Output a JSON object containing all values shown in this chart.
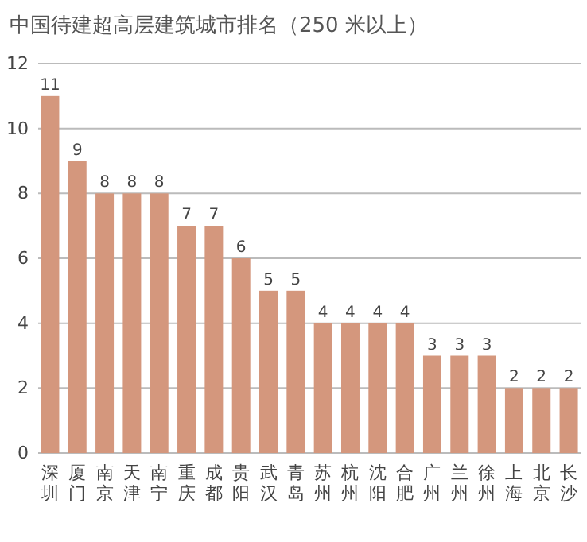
{
  "chart_data": {
    "type": "bar",
    "title": "中国待建超高层建筑城市排名（250 米以上）",
    "categories": [
      "深圳",
      "厦门",
      "南京",
      "天津",
      "南宁",
      "重庆",
      "成都",
      "贵阳",
      "武汉",
      "青岛",
      "苏州",
      "杭州",
      "沈阳",
      "合肥",
      "广州",
      "兰州",
      "徐州",
      "上海",
      "北京",
      "长沙"
    ],
    "values": [
      11,
      9,
      8,
      8,
      8,
      7,
      7,
      6,
      5,
      5,
      4,
      4,
      4,
      4,
      3,
      3,
      3,
      2,
      2,
      2
    ],
    "color": "#d4977d",
    "ylim": [
      0,
      12
    ],
    "yticks": [
      0,
      2,
      4,
      6,
      8,
      10,
      12
    ],
    "grid": "y",
    "data_labels": true
  }
}
